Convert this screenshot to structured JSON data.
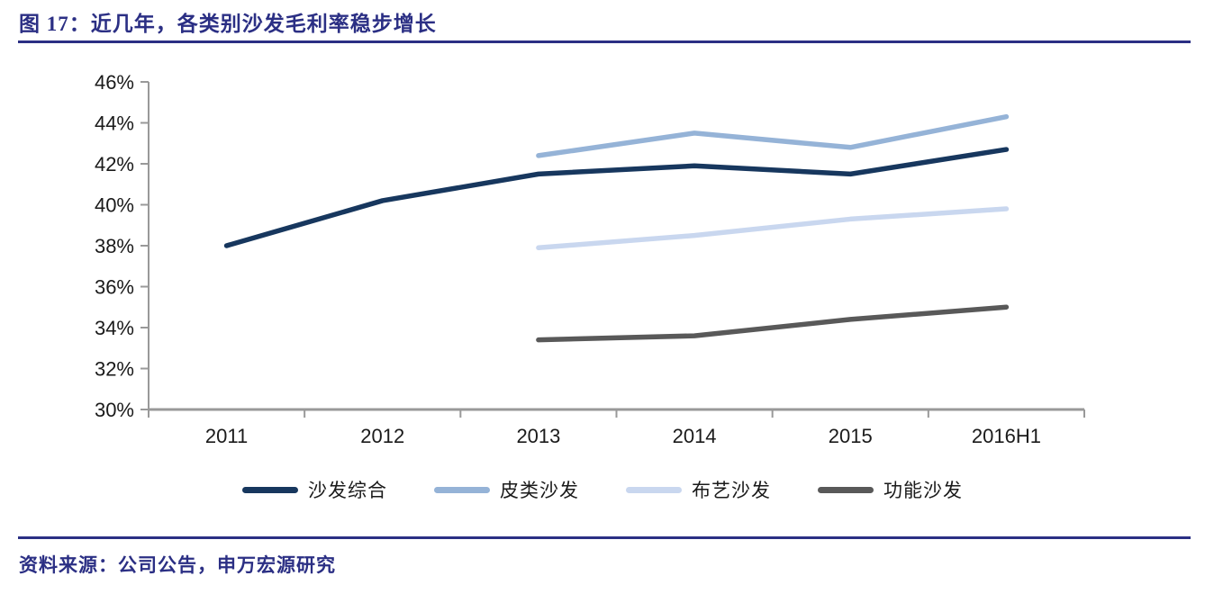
{
  "figure": {
    "title": "图 17：近几年，各类别沙发毛利率稳步增长",
    "source": "资料来源：公司公告，申万宏源研究",
    "accent_color": "#2B2F84"
  },
  "chart_data": {
    "type": "line",
    "title": "近几年，各类别沙发毛利率稳步增长",
    "categories": [
      "2011",
      "2012",
      "2013",
      "2014",
      "2015",
      "2016H1"
    ],
    "series": [
      {
        "name": "沙发综合",
        "color": "#17375E",
        "values": [
          38.0,
          40.2,
          41.5,
          41.9,
          41.5,
          42.7
        ]
      },
      {
        "name": "皮类沙发",
        "color": "#95B3D7",
        "values": [
          null,
          null,
          42.4,
          43.5,
          42.8,
          44.3
        ]
      },
      {
        "name": "布艺沙发",
        "color": "#C9D7EF",
        "values": [
          null,
          null,
          37.9,
          38.5,
          39.3,
          39.8
        ]
      },
      {
        "name": "功能沙发",
        "color": "#595959",
        "values": [
          null,
          null,
          33.4,
          33.6,
          34.4,
          35.0
        ]
      }
    ],
    "ylabel": "",
    "xlabel": "",
    "ylim": [
      30,
      46
    ],
    "y_tick_step": 2,
    "y_tick_labels": [
      "46%",
      "44%",
      "42%",
      "40%",
      "38%",
      "36%",
      "34%",
      "32%",
      "30%"
    ],
    "unit": "percent",
    "grid": false,
    "legend_position": "bottom",
    "axis_color": "#999999",
    "tick_label_color": "#1a1a1a"
  }
}
